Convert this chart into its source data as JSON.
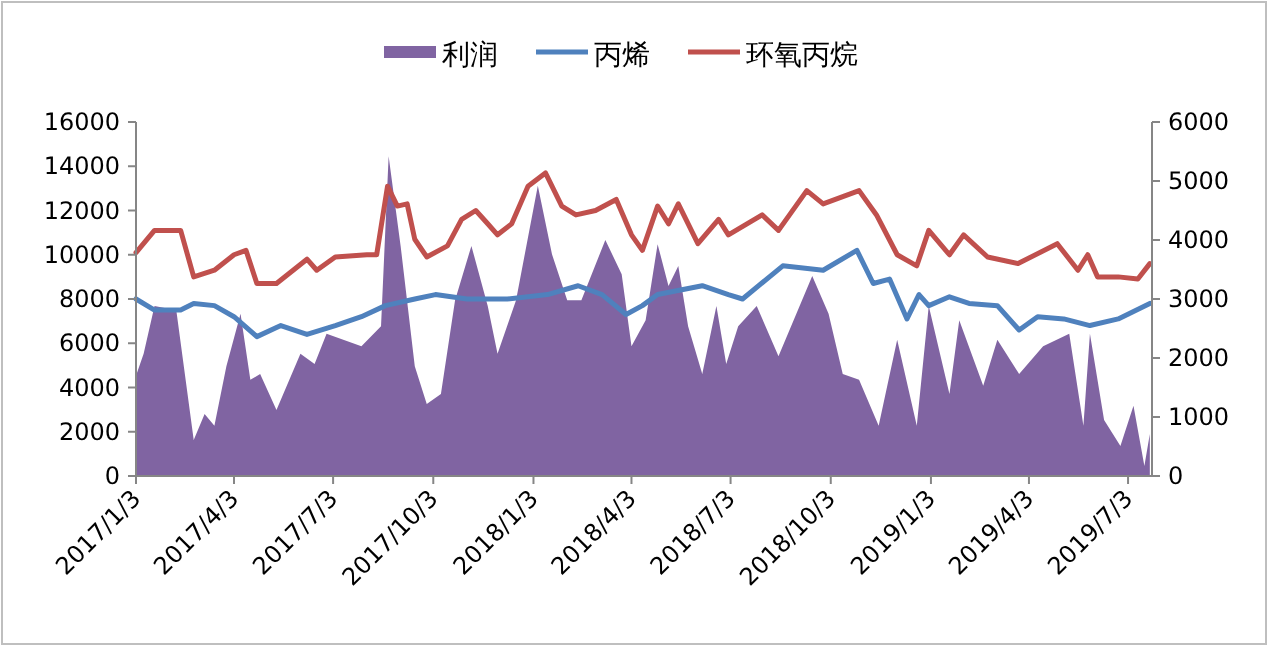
{
  "chart_data": {
    "type": "line",
    "legend": "top",
    "grid": false,
    "marker": "none",
    "line_style": "solid",
    "xlim": [
      "2017-01-03",
      "2019-07-25"
    ],
    "xticks": [
      {
        "value": "2017-01-03",
        "label": "2017/1/3"
      },
      {
        "value": "2017-04-03",
        "label": "2017/4/3"
      },
      {
        "value": "2017-07-03",
        "label": "2017/7/3"
      },
      {
        "value": "2017-10-03",
        "label": "2017/10/3"
      },
      {
        "value": "2018-01-03",
        "label": "2018/1/3"
      },
      {
        "value": "2018-04-03",
        "label": "2018/4/3"
      },
      {
        "value": "2018-07-03",
        "label": "2018/7/3"
      },
      {
        "value": "2018-10-03",
        "label": "2018/10/3"
      },
      {
        "value": "2019-01-03",
        "label": "2019/1/3"
      },
      {
        "value": "2019-04-03",
        "label": "2019/4/3"
      },
      {
        "value": "2019-07-03",
        "label": "2019/7/3"
      }
    ],
    "ylim": [
      0,
      16000
    ],
    "yticks": [
      0,
      2000,
      4000,
      6000,
      8000,
      10000,
      12000,
      14000,
      16000
    ],
    "y2lim": [
      0,
      6000
    ],
    "y2ticks": [
      0,
      1000,
      2000,
      3000,
      4000,
      5000,
      6000
    ],
    "series": [
      {
        "name": "利润",
        "type": "area",
        "axis": "y2",
        "color": "#8064a2",
        "x": [
          "2017-01-03",
          "2017-01-10",
          "2017-01-20",
          "2017-02-09",
          "2017-02-25",
          "2017-03-07",
          "2017-03-16",
          "2017-03-27",
          "2017-04-09",
          "2017-04-18",
          "2017-04-27",
          "2017-05-12",
          "2017-06-03",
          "2017-06-16",
          "2017-06-27",
          "2017-07-29",
          "2017-08-16",
          "2017-08-23",
          "2017-09-03",
          "2017-09-16",
          "2017-09-27",
          "2017-10-10",
          "2017-10-23",
          "2017-11-07",
          "2017-11-22",
          "2017-12-01",
          "2017-12-18",
          "2018-01-07",
          "2018-01-20",
          "2018-02-03",
          "2018-02-16",
          "2018-03-10",
          "2018-03-25",
          "2018-04-03",
          "2018-04-16",
          "2018-04-27",
          "2018-05-07",
          "2018-05-16",
          "2018-05-25",
          "2018-06-07",
          "2018-06-20",
          "2018-06-29",
          "2018-07-10",
          "2018-07-27",
          "2018-08-16",
          "2018-09-16",
          "2018-10-01",
          "2018-10-14",
          "2018-10-29",
          "2018-11-16",
          "2018-12-03",
          "2018-12-21",
          "2019-01-01",
          "2019-01-20",
          "2019-01-29",
          "2019-02-20",
          "2019-03-05",
          "2019-03-25",
          "2019-04-16",
          "2019-05-10",
          "2019-05-23",
          "2019-05-29",
          "2019-06-11",
          "2019-06-26",
          "2019-07-08",
          "2019-07-18",
          "2019-07-23"
        ],
        "values": [
          1700,
          2070,
          2880,
          2810,
          610,
          1050,
          850,
          1860,
          2750,
          1630,
          1730,
          1120,
          2070,
          1900,
          2410,
          2200,
          2540,
          5420,
          3900,
          1860,
          1220,
          1390,
          2980,
          3900,
          2880,
          2070,
          2980,
          4920,
          3760,
          2980,
          2980,
          4000,
          3420,
          2200,
          2640,
          3930,
          3220,
          3560,
          2540,
          1730,
          2880,
          1900,
          2540,
          2880,
          2030,
          3390,
          2750,
          1730,
          1630,
          850,
          2310,
          850,
          2880,
          1390,
          2640,
          1530,
          2310,
          1730,
          2200,
          2410,
          850,
          2410,
          950,
          510,
          1190,
          170,
          710
        ]
      },
      {
        "name": "丙烯",
        "color": "#4f81bd",
        "x": [
          "2017-01-03",
          "2017-01-20",
          "2017-02-13",
          "2017-02-25",
          "2017-03-16",
          "2017-04-03",
          "2017-04-24",
          "2017-05-16",
          "2017-06-09",
          "2017-07-05",
          "2017-07-29",
          "2017-08-20",
          "2017-09-16",
          "2017-10-05",
          "2017-11-03",
          "2017-12-10",
          "2018-01-16",
          "2018-02-13",
          "2018-03-07",
          "2018-03-29",
          "2018-04-13",
          "2018-04-27",
          "2018-06-07",
          "2018-07-01",
          "2018-07-14",
          "2018-08-20",
          "2018-09-26",
          "2018-10-27",
          "2018-11-11",
          "2018-11-26",
          "2018-12-12",
          "2018-12-23",
          "2019-01-01",
          "2019-01-20",
          "2019-02-07",
          "2019-03-05",
          "2019-03-25",
          "2019-04-11",
          "2019-05-05",
          "2019-05-29",
          "2019-06-24",
          "2019-07-23"
        ],
        "values": [
          8000,
          7500,
          7500,
          7800,
          7700,
          7200,
          6300,
          6800,
          6400,
          6800,
          7200,
          7700,
          8000,
          8200,
          8000,
          8000,
          8200,
          8600,
          8200,
          7300,
          7700,
          8200,
          8600,
          8200,
          8000,
          9500,
          9300,
          10200,
          8700,
          8900,
          7100,
          8200,
          7700,
          8100,
          7800,
          7700,
          6600,
          7200,
          7100,
          6800,
          7100,
          7800
        ]
      },
      {
        "name": "环氧丙烷",
        "color": "#c0504d",
        "x": [
          "2017-01-03",
          "2017-01-20",
          "2017-02-13",
          "2017-02-25",
          "2017-03-16",
          "2017-04-03",
          "2017-04-14",
          "2017-04-24",
          "2017-05-12",
          "2017-06-09",
          "2017-06-18",
          "2017-07-05",
          "2017-08-03",
          "2017-08-12",
          "2017-08-22",
          "2017-08-31",
          "2017-09-09",
          "2017-09-16",
          "2017-09-27",
          "2017-10-16",
          "2017-10-29",
          "2017-11-11",
          "2017-11-22",
          "2017-12-01",
          "2017-12-14",
          "2017-12-29",
          "2018-01-14",
          "2018-01-29",
          "2018-02-11",
          "2018-03-01",
          "2018-03-20",
          "2018-04-03",
          "2018-04-13",
          "2018-04-27",
          "2018-05-07",
          "2018-05-16",
          "2018-06-03",
          "2018-06-22",
          "2018-07-01",
          "2018-08-01",
          "2018-08-16",
          "2018-09-11",
          "2018-09-26",
          "2018-10-29",
          "2018-11-14",
          "2018-12-03",
          "2018-12-21",
          "2019-01-01",
          "2019-01-20",
          "2019-02-02",
          "2019-02-24",
          "2019-03-24",
          "2019-04-29",
          "2019-05-18",
          "2019-05-27",
          "2019-06-05",
          "2019-06-24",
          "2019-07-12",
          "2019-07-23"
        ],
        "values": [
          10100,
          11100,
          11100,
          9000,
          9300,
          10000,
          10200,
          8700,
          8700,
          9800,
          9300,
          9900,
          10000,
          10000,
          13100,
          12200,
          12300,
          10700,
          9900,
          10400,
          11600,
          12000,
          11400,
          10900,
          11400,
          13100,
          13700,
          12200,
          11800,
          12000,
          12500,
          10900,
          10200,
          12200,
          11400,
          12300,
          10500,
          11600,
          10900,
          11800,
          11100,
          12900,
          12300,
          12900,
          11800,
          10000,
          9500,
          11100,
          10000,
          10900,
          9900,
          9600,
          10500,
          9300,
          10000,
          9000,
          9000,
          8900,
          9600
        ]
      }
    ]
  }
}
